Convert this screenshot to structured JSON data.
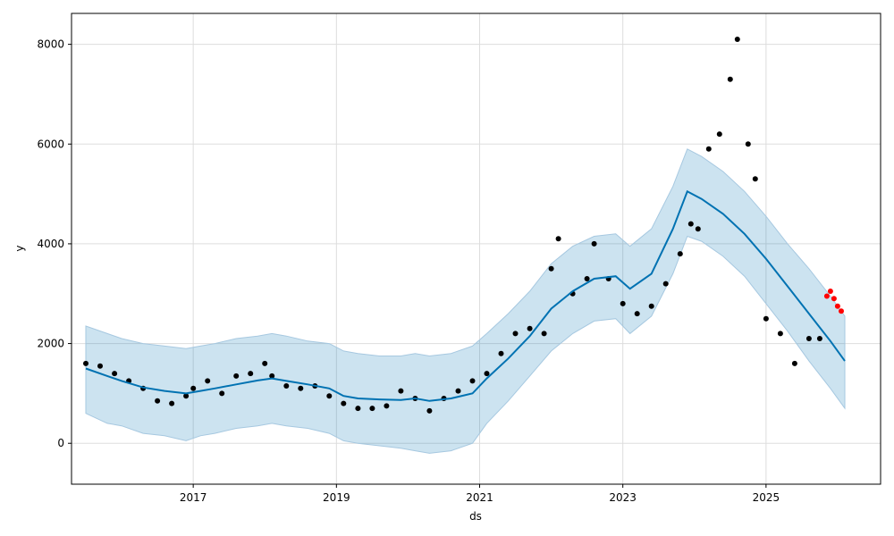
{
  "chart_data": {
    "type": "scatter",
    "title": "",
    "xlabel": "ds",
    "ylabel": "y",
    "xlim": [
      2015.3,
      2026.6
    ],
    "ylim": [
      -820,
      8620
    ],
    "grid": true,
    "x_ticks": [
      {
        "value": 2017,
        "label": "2017"
      },
      {
        "value": 2019,
        "label": "2019"
      },
      {
        "value": 2021,
        "label": "2021"
      },
      {
        "value": 2023,
        "label": "2023"
      },
      {
        "value": 2025,
        "label": "2025"
      }
    ],
    "y_ticks": [
      {
        "value": 0,
        "label": "0"
      },
      {
        "value": 2000,
        "label": "2000"
      },
      {
        "value": 4000,
        "label": "4000"
      },
      {
        "value": 6000,
        "label": "6000"
      },
      {
        "value": 8000,
        "label": "8000"
      }
    ],
    "colors": {
      "forecast_line": "#0072b2",
      "band_fill": "#0072b2",
      "band_edge": "#a6c8e0",
      "observed": "#000000",
      "recent": "#ff0000",
      "grid": "#dddddd"
    },
    "forecast": {
      "x": [
        2015.5,
        2015.8,
        2016.0,
        2016.3,
        2016.6,
        2016.9,
        2017.1,
        2017.3,
        2017.6,
        2017.9,
        2018.1,
        2018.3,
        2018.6,
        2018.9,
        2019.1,
        2019.3,
        2019.6,
        2019.9,
        2020.1,
        2020.3,
        2020.6,
        2020.9,
        2021.1,
        2021.4,
        2021.7,
        2022.0,
        2022.3,
        2022.6,
        2022.9,
        2023.1,
        2023.4,
        2023.7,
        2023.9,
        2024.1,
        2024.4,
        2024.7,
        2025.0,
        2025.3,
        2025.6,
        2025.9,
        2026.1
      ],
      "yhat": [
        1500,
        1350,
        1250,
        1120,
        1050,
        1000,
        1050,
        1100,
        1180,
        1260,
        1300,
        1250,
        1180,
        1100,
        950,
        900,
        880,
        870,
        900,
        850,
        900,
        1000,
        1300,
        1700,
        2150,
        2700,
        3050,
        3300,
        3350,
        3100,
        3400,
        4300,
        5050,
        4900,
        4600,
        4200,
        3700,
        3150,
        2600,
        2050,
        1650
      ],
      "lower": [
        600,
        400,
        350,
        200,
        150,
        50,
        150,
        200,
        300,
        350,
        400,
        350,
        300,
        200,
        50,
        0,
        -50,
        -100,
        -150,
        -200,
        -150,
        0,
        400,
        850,
        1350,
        1850,
        2200,
        2450,
        2500,
        2200,
        2550,
        3400,
        4150,
        4050,
        3750,
        3350,
        2800,
        2250,
        1650,
        1100,
        700
      ],
      "upper": [
        2350,
        2200,
        2100,
        2000,
        1950,
        1900,
        1950,
        2000,
        2100,
        2150,
        2200,
        2150,
        2050,
        2000,
        1850,
        1800,
        1750,
        1750,
        1800,
        1750,
        1800,
        1950,
        2200,
        2600,
        3050,
        3600,
        3950,
        4150,
        4200,
        3950,
        4300,
        5150,
        5900,
        5750,
        5450,
        5050,
        4550,
        4000,
        3500,
        2950,
        2550
      ]
    },
    "observed": {
      "x": [
        2015.5,
        2015.7,
        2015.9,
        2016.1,
        2016.3,
        2016.5,
        2016.7,
        2016.9,
        2017.0,
        2017.2,
        2017.4,
        2017.6,
        2017.8,
        2018.0,
        2018.1,
        2018.3,
        2018.5,
        2018.7,
        2018.9,
        2019.1,
        2019.3,
        2019.5,
        2019.7,
        2019.9,
        2020.1,
        2020.3,
        2020.5,
        2020.7,
        2020.9,
        2021.1,
        2021.3,
        2021.5,
        2021.7,
        2021.9,
        2022.0,
        2022.1,
        2022.3,
        2022.5,
        2022.6,
        2022.8,
        2023.0,
        2023.2,
        2023.4,
        2023.6,
        2023.8,
        2023.95,
        2024.05,
        2024.2,
        2024.35,
        2024.5,
        2024.6,
        2024.75,
        2024.85,
        2025.0,
        2025.2,
        2025.4,
        2025.6,
        2025.75
      ],
      "y": [
        1600,
        1550,
        1400,
        1250,
        1100,
        850,
        800,
        950,
        1100,
        1250,
        1000,
        1350,
        1400,
        1600,
        1350,
        1150,
        1100,
        1150,
        950,
        800,
        700,
        700,
        750,
        1050,
        900,
        650,
        900,
        1050,
        1250,
        1400,
        1800,
        2200,
        2300,
        2200,
        3500,
        4100,
        3000,
        3300,
        4000,
        3300,
        2800,
        2600,
        2750,
        3200,
        3800,
        4400,
        4300,
        5900,
        6200,
        7300,
        8100,
        6000,
        5300,
        2500,
        2200,
        1600,
        2100,
        2100
      ]
    },
    "recent": {
      "x": [
        2025.85,
        2025.9,
        2025.95,
        2026.0,
        2026.05
      ],
      "y": [
        2950,
        3050,
        2900,
        2750,
        2650
      ]
    }
  }
}
